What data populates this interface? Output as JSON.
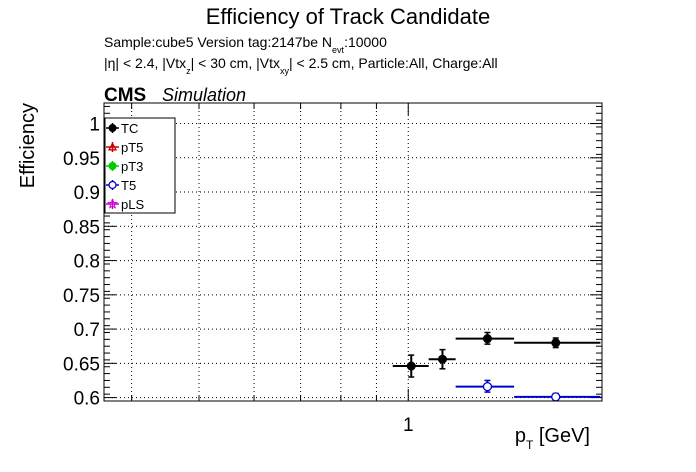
{
  "chart_data": {
    "type": "scatter",
    "title": "Efficiency of Track Candidate",
    "subtitle_line1": {
      "pre": "Sample:cube5   Version tag:2147be  N",
      "sub": "evt",
      "post": ":10000"
    },
    "subtitle_line2": {
      "p1": "|η| < 2.4, |Vtx",
      "s1": "z",
      "p2": "| < 30 cm, |Vtx",
      "s2": "xy",
      "p3": "| < 2.5 cm, Particle:All, Charge:All"
    },
    "cms_label": "CMS",
    "cms_extra": "Simulation",
    "ylabel": "Efficiency",
    "xlabel": {
      "main": "p",
      "sub": "T",
      "unit": " [GeV]"
    },
    "xscale": "log",
    "xlim": [
      0.365,
      1.9
    ],
    "ylim": [
      0.595,
      1.03
    ],
    "x_tick_labels": [
      {
        "value": 1,
        "label": "1"
      }
    ],
    "y_ticks": [
      0.6,
      0.65,
      0.7,
      0.75,
      0.8,
      0.85,
      0.9,
      0.95,
      1
    ],
    "y_tick_labels": [
      "0.6",
      "0.65",
      "0.7",
      "0.75",
      "0.8",
      "0.85",
      "0.9",
      "0.95",
      "1"
    ],
    "grid": true,
    "legend_position": "top-left",
    "series": [
      {
        "name": "TC",
        "color": "#000000",
        "marker": "filled-circle",
        "points": [
          {
            "x": 1.01,
            "xlo": 0.95,
            "xhi": 1.07,
            "y": 0.646,
            "ylo": 0.63,
            "yhi": 0.662
          },
          {
            "x": 1.12,
            "xlo": 1.07,
            "xhi": 1.17,
            "y": 0.656,
            "ylo": 0.642,
            "yhi": 0.67
          },
          {
            "x": 1.3,
            "xlo": 1.17,
            "xhi": 1.42,
            "y": 0.686,
            "ylo": 0.678,
            "yhi": 0.695
          },
          {
            "x": 1.63,
            "xlo": 1.42,
            "xhi": 1.89,
            "y": 0.68,
            "ylo": 0.673,
            "yhi": 0.687
          }
        ]
      },
      {
        "name": "pT5",
        "color": "#cc0000",
        "marker": "open-triangle",
        "points": []
      },
      {
        "name": "pT3",
        "color": "#00cc00",
        "marker": "filled-circle",
        "points": []
      },
      {
        "name": "T5",
        "color": "#0000cc",
        "marker": "open-circle",
        "points": [
          {
            "x": 1.3,
            "xlo": 1.17,
            "xhi": 1.42,
            "y": 0.616,
            "ylo": 0.608,
            "yhi": 0.625
          },
          {
            "x": 1.63,
            "xlo": 1.42,
            "xhi": 1.89,
            "y": 0.601,
            "ylo": 0.597,
            "yhi": 0.606
          }
        ]
      },
      {
        "name": "pLS",
        "color": "#cc00cc",
        "marker": "open-star",
        "points": []
      }
    ]
  }
}
